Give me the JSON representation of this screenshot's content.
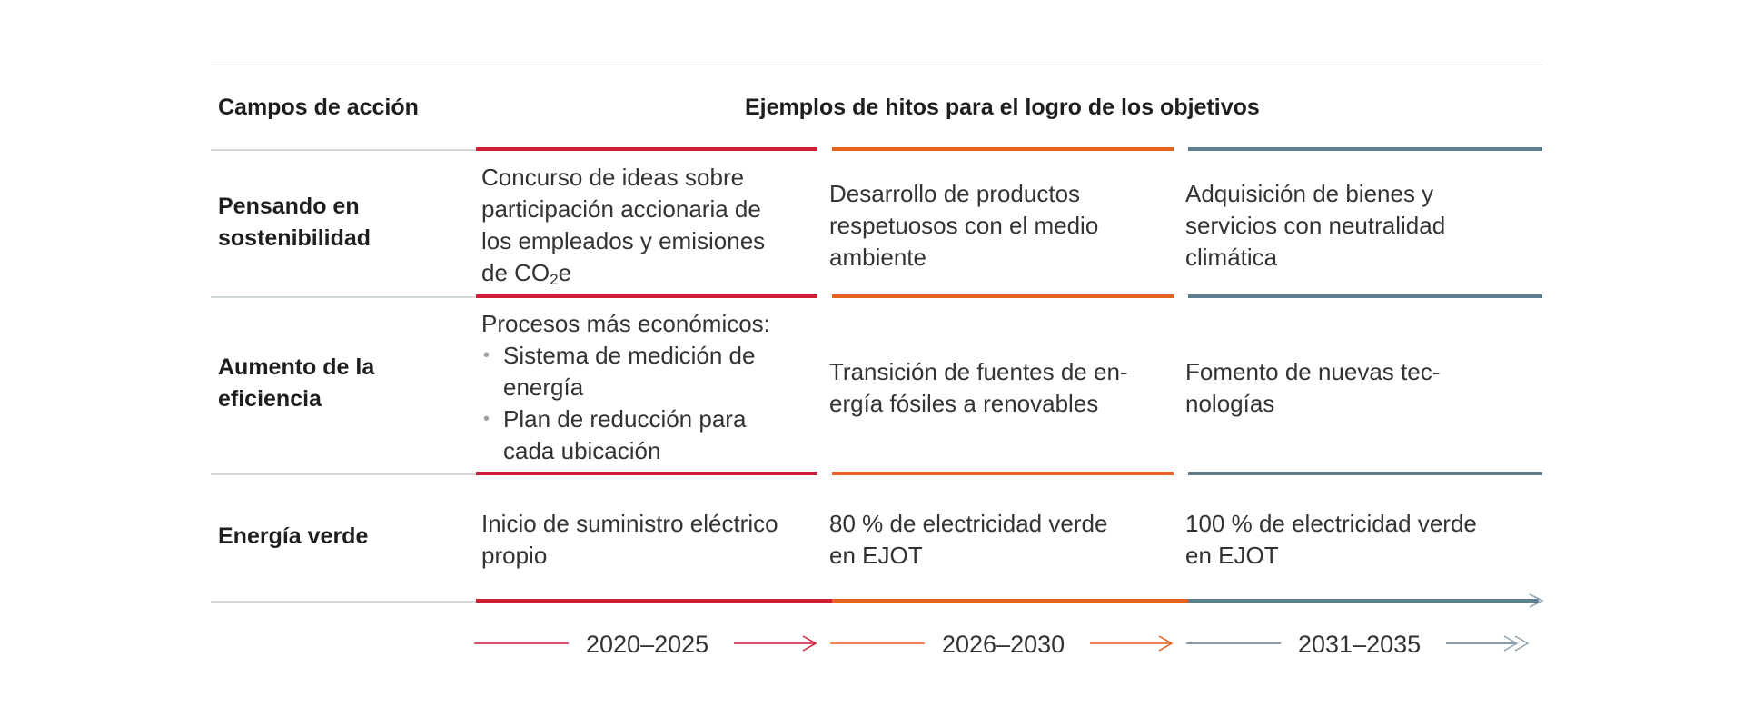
{
  "header": {
    "fields_title": "Campos de acción",
    "milestones_title": "Ejemplos de hitos para el logro de los objetivos"
  },
  "rows": [
    {
      "label_line1": "Pensando en",
      "label_line2": "sostenibilidad",
      "cells": [
        {
          "lines": [
            "Concurso de ideas sobre",
            "participación accionaria de",
            "los empleados y emisiones"
          ],
          "co2_prefix": "de CO",
          "co2_sub": "2",
          "co2_suffix": "e"
        },
        {
          "lines": [
            "Desarrollo de productos",
            "respetuosos con el medio",
            "ambiente"
          ]
        },
        {
          "lines": [
            "Adquisición de bienes y",
            "servicios con neutralidad",
            "climática"
          ]
        }
      ]
    },
    {
      "label_line1": "Aumento de la",
      "label_line2": "eficiencia",
      "cells": [
        {
          "intro": "Procesos más económicos:",
          "bullets": [
            [
              "Sistema de medición de",
              "energía"
            ],
            [
              "Plan de reducción para",
              "cada ubicación"
            ]
          ]
        },
        {
          "lines": [
            "Transición de fuentes de en-",
            "ergía fósiles a renovables"
          ]
        },
        {
          "lines": [
            "Fomento de nuevas tec-",
            "nologías"
          ]
        }
      ]
    },
    {
      "label_line1": "Energía verde",
      "cells": [
        {
          "lines": [
            "Inicio de suministro eléctrico",
            "propio"
          ]
        },
        {
          "lines": [
            "80 % de electricidad verde",
            "en EJOT"
          ]
        },
        {
          "lines": [
            "100 % de electricidad verde",
            "en EJOT"
          ]
        }
      ]
    }
  ],
  "periods": [
    "2020–2025",
    "2026–2030",
    "2031–2035"
  ],
  "colors": {
    "period1": "#cf1f38",
    "period2": "#e3621f",
    "period3": "#5f7f91",
    "rule": "#d3dadd"
  }
}
